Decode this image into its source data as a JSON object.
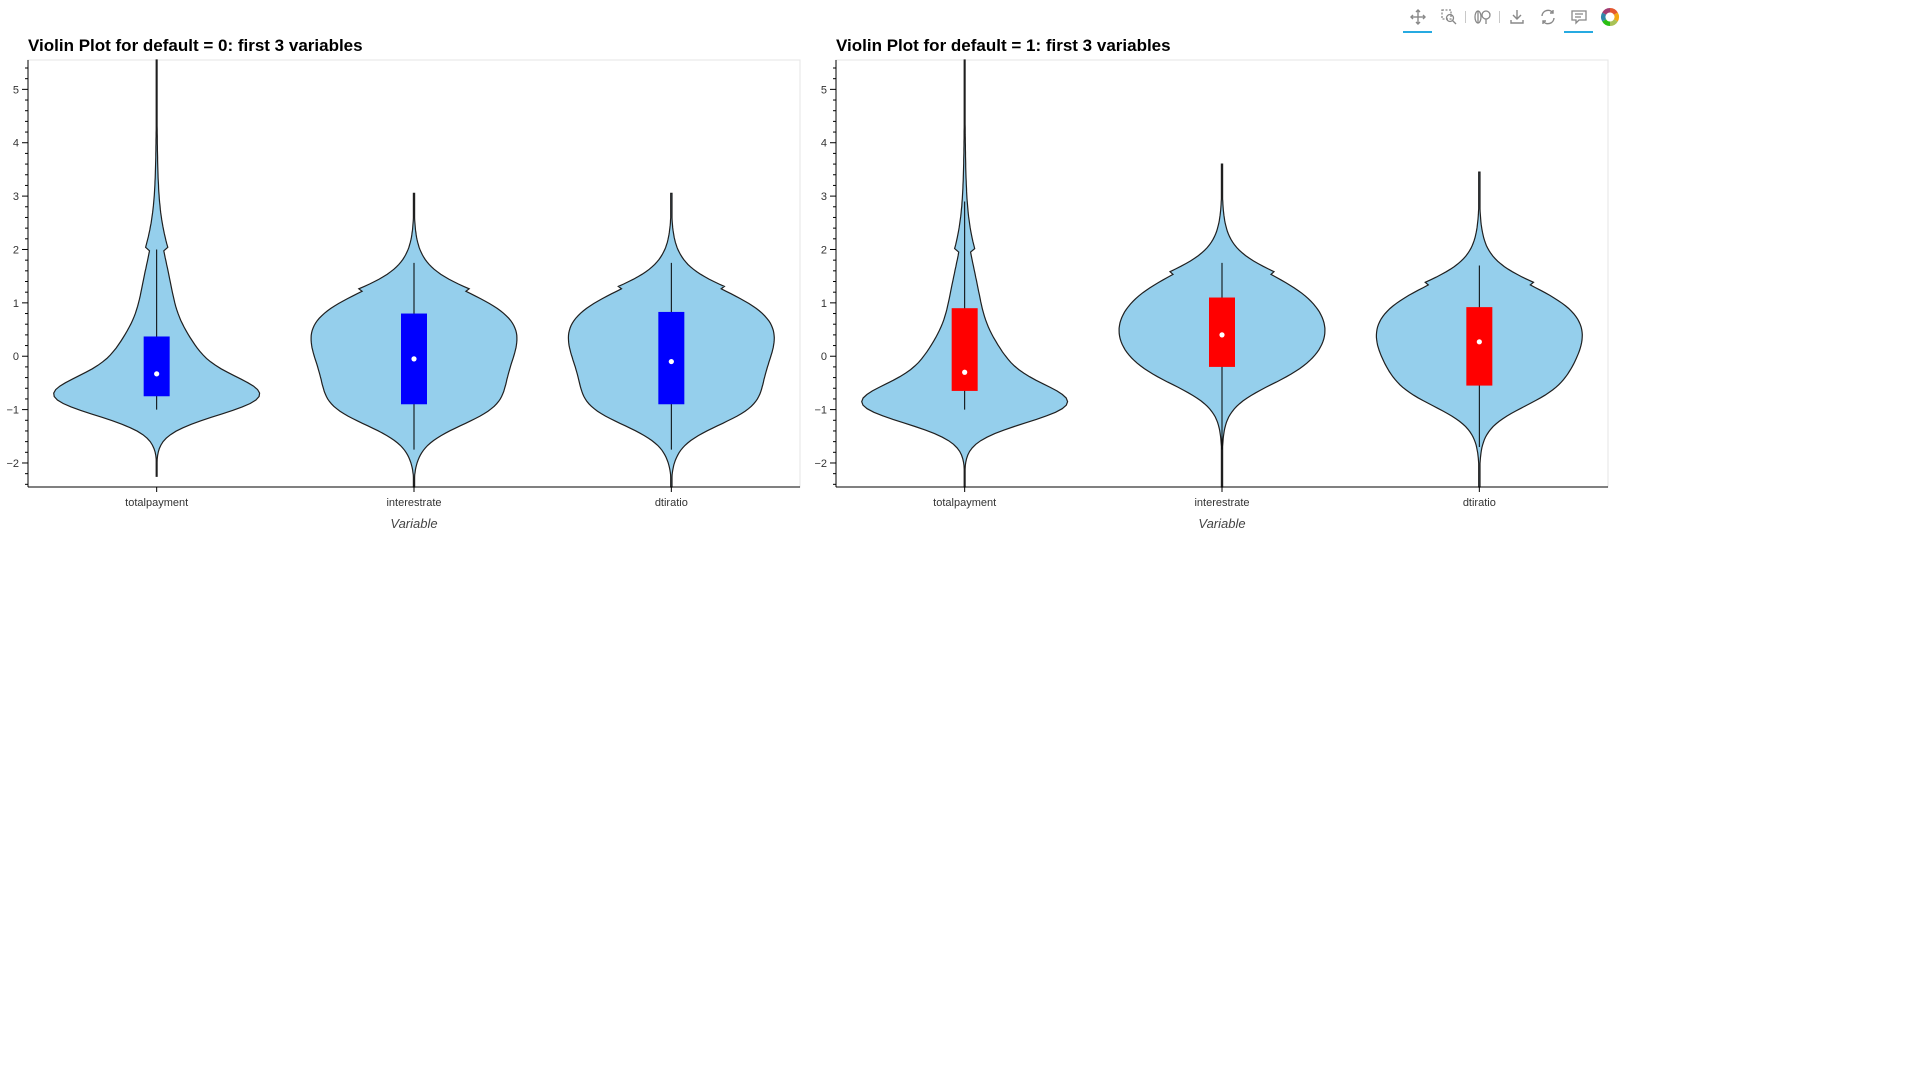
{
  "toolbar": {
    "tools": [
      {
        "name": "pan-tool",
        "icon": "pan-icon",
        "active": true
      },
      {
        "name": "box-zoom-tool",
        "icon": "box-zoom-icon",
        "active": false
      },
      {
        "name": "wheel-zoom-tool",
        "icon": "wheel-zoom-icon",
        "active": false
      },
      {
        "name": "save-tool",
        "icon": "save-icon",
        "active": false
      },
      {
        "name": "reset-tool",
        "icon": "reset-icon",
        "active": false
      },
      {
        "name": "hover-tool",
        "icon": "hover-icon",
        "active": true
      },
      {
        "name": "bokeh-logo",
        "icon": "bokeh-logo-icon",
        "active": false
      }
    ]
  },
  "colors": {
    "violin_fill": "#95cfec",
    "violin_stroke": "#1f1f1f",
    "box_default0": "#0000ff",
    "box_default1": "#ff0000",
    "median_dot": "#ffffff",
    "accent": "#26aae1"
  },
  "chart_data": [
    {
      "type": "violin",
      "title": "Violin Plot for default = 0: first 3 variables",
      "xlabel": "Variable",
      "ylabel": "",
      "ylim": [
        -2.45,
        5.55
      ],
      "yticks": [
        -2,
        -1,
        0,
        1,
        2,
        3,
        4,
        5
      ],
      "categories": [
        "totalpayment",
        "interestrate",
        "dtiratio"
      ],
      "box_color": "#0000ff",
      "violins": [
        {
          "category": "totalpayment",
          "q1": -0.75,
          "median": -0.33,
          "q3": 0.37,
          "whisker_low": -1.0,
          "whisker_high": 2.0,
          "ymin": -2.25,
          "ymax": 5.55
        },
        {
          "category": "interestrate",
          "q1": -0.9,
          "median": -0.05,
          "q3": 0.8,
          "whisker_low": -1.75,
          "whisker_high": 1.75,
          "ymin": -2.45,
          "ymax": 3.05
        },
        {
          "category": "dtiratio",
          "q1": -0.9,
          "median": -0.1,
          "q3": 0.83,
          "whisker_low": -1.75,
          "whisker_high": 1.75,
          "ymin": -2.45,
          "ymax": 3.05
        }
      ]
    },
    {
      "type": "violin",
      "title": "Violin Plot for default = 1: first 3 variables",
      "xlabel": "Variable",
      "ylabel": "",
      "ylim": [
        -2.45,
        5.55
      ],
      "yticks": [
        -2,
        -1,
        0,
        1,
        2,
        3,
        4,
        5
      ],
      "categories": [
        "totalpayment",
        "interestrate",
        "dtiratio"
      ],
      "box_color": "#ff0000",
      "violins": [
        {
          "category": "totalpayment",
          "q1": -0.65,
          "median": -0.3,
          "q3": 0.9,
          "whisker_low": -1.0,
          "whisker_high": 2.9,
          "ymin": -2.45,
          "ymax": 5.55
        },
        {
          "category": "interestrate",
          "q1": -0.2,
          "median": 0.4,
          "q3": 1.1,
          "whisker_low": -1.75,
          "whisker_high": 1.75,
          "ymin": -2.45,
          "ymax": 3.6
        },
        {
          "category": "dtiratio",
          "q1": -0.55,
          "median": 0.27,
          "q3": 0.92,
          "whisker_low": -1.7,
          "whisker_high": 1.7,
          "ymin": -2.45,
          "ymax": 3.45
        }
      ]
    }
  ]
}
